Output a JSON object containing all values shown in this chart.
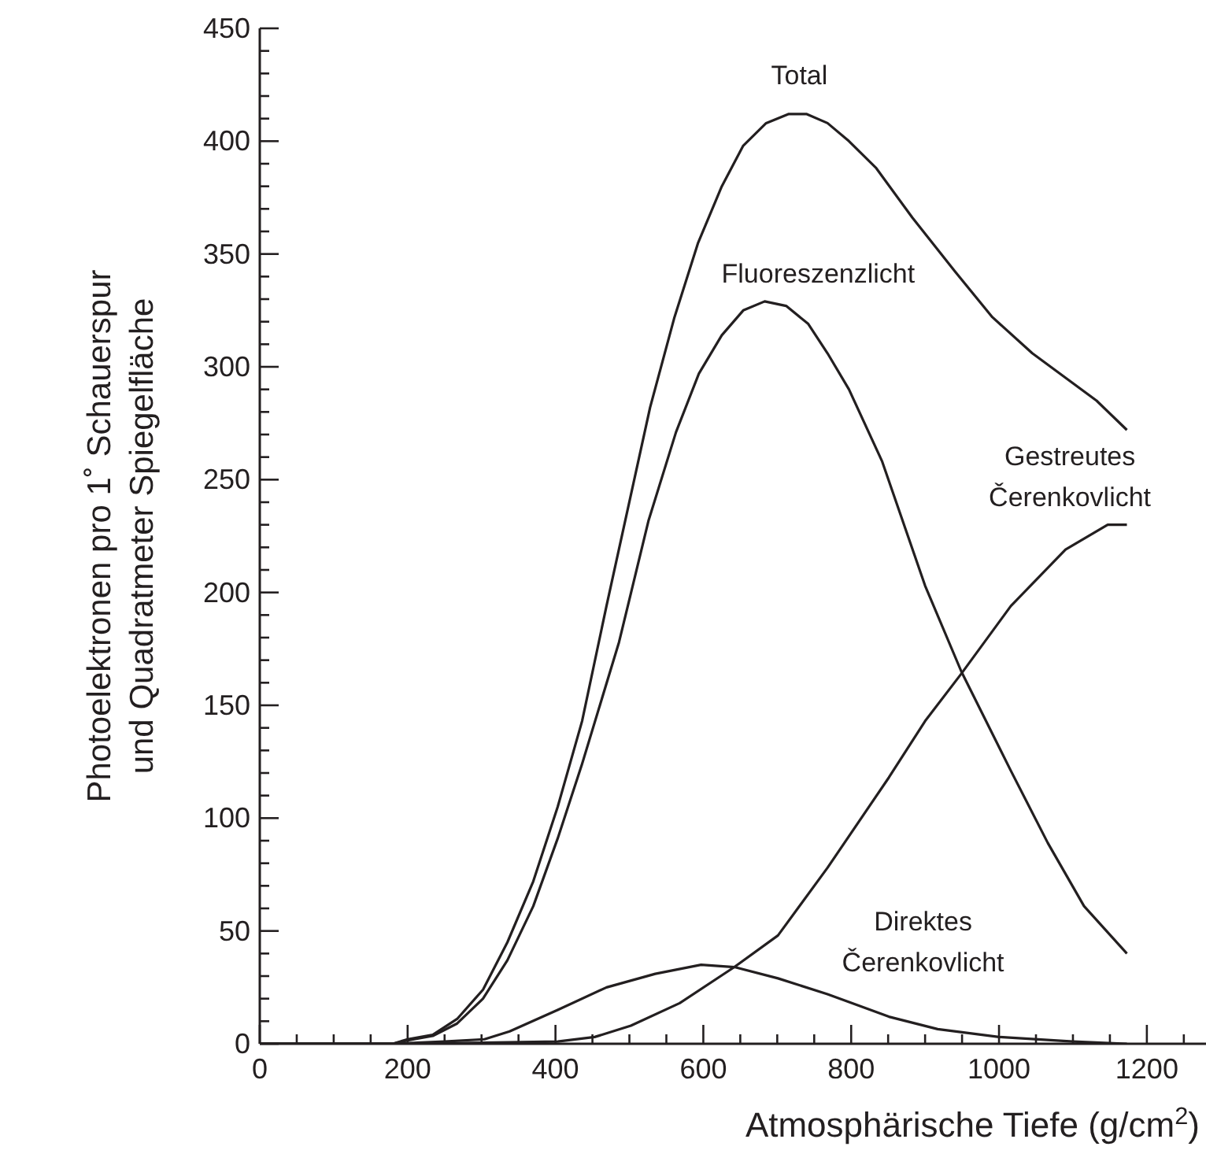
{
  "chart_data": {
    "type": "line",
    "xlabel": "Atmosphärische Tiefe (g/cm$^{2}$)",
    "ylabel": "Photoelektronen pro 1˚ Schauerspur\nund Quadratmeter Spiegelfläche",
    "marker": "none",
    "line_style": "solid",
    "xlim": [
      0,
      1280
    ],
    "ylim": [
      0,
      450
    ],
    "xticks": [
      0,
      {
        "value": 50,
        "label": null
      },
      {
        "value": 100,
        "label": null
      },
      {
        "value": 150,
        "label": null
      },
      200,
      {
        "value": 250,
        "label": null
      },
      {
        "value": 300,
        "label": null
      },
      {
        "value": 350,
        "label": null
      },
      400,
      {
        "value": 450,
        "label": null
      },
      {
        "value": 500,
        "label": null
      },
      {
        "value": 550,
        "label": null
      },
      600,
      {
        "value": 650,
        "label": null
      },
      {
        "value": 700,
        "label": null
      },
      {
        "value": 750,
        "label": null
      },
      800,
      {
        "value": 850,
        "label": null
      },
      {
        "value": 900,
        "label": null
      },
      {
        "value": 950,
        "label": null
      },
      1000,
      {
        "value": 1050,
        "label": null
      },
      {
        "value": 1100,
        "label": null
      },
      {
        "value": 1150,
        "label": null
      },
      1200,
      {
        "value": 1250,
        "label": null
      }
    ],
    "yticks": [
      0,
      {
        "value": 10,
        "label": null
      },
      {
        "value": 20,
        "label": null
      },
      {
        "value": 30,
        "label": null
      },
      {
        "value": 40,
        "label": null
      },
      50,
      {
        "value": 60,
        "label": null
      },
      {
        "value": 70,
        "label": null
      },
      {
        "value": 80,
        "label": null
      },
      {
        "value": 90,
        "label": null
      },
      100,
      {
        "value": 110,
        "label": null
      },
      {
        "value": 120,
        "label": null
      },
      {
        "value": 130,
        "label": null
      },
      {
        "value": 140,
        "label": null
      },
      150,
      {
        "value": 160,
        "label": null
      },
      {
        "value": 170,
        "label": null
      },
      {
        "value": 180,
        "label": null
      },
      {
        "value": 190,
        "label": null
      },
      200,
      {
        "value": 210,
        "label": null
      },
      {
        "value": 220,
        "label": null
      },
      {
        "value": 230,
        "label": null
      },
      {
        "value": 240,
        "label": null
      },
      250,
      {
        "value": 260,
        "label": null
      },
      {
        "value": 270,
        "label": null
      },
      {
        "value": 280,
        "label": null
      },
      {
        "value": 290,
        "label": null
      },
      300,
      {
        "value": 310,
        "label": null
      },
      {
        "value": 320,
        "label": null
      },
      {
        "value": 330,
        "label": null
      },
      {
        "value": 340,
        "label": null
      },
      350,
      {
        "value": 360,
        "label": null
      },
      {
        "value": 370,
        "label": null
      },
      {
        "value": 380,
        "label": null
      },
      {
        "value": 390,
        "label": null
      },
      400,
      {
        "value": 410,
        "label": null
      },
      {
        "value": 420,
        "label": null
      },
      {
        "value": 430,
        "label": null
      },
      {
        "value": 440,
        "label": null
      },
      450
    ],
    "series": [
      {
        "name": "Total",
        "color": "#231f20",
        "x": [
          0,
          180,
          200,
          234,
          267,
          302,
          335,
          370,
          403,
          436,
          469,
          528,
          561,
          593,
          625,
          654,
          685,
          715,
          740,
          768,
          797,
          834,
          883,
          941,
          991,
          1045,
          1132,
          1173
        ],
        "values": [
          0,
          0,
          2,
          4,
          11,
          24,
          45,
          72,
          105,
          143,
          194,
          282,
          322,
          355,
          380,
          398,
          408,
          412,
          412,
          408,
          400,
          388,
          366,
          342,
          322,
          306,
          285,
          272
        ]
      },
      {
        "name": "Fluoreszenzlicht",
        "color": "#231f20",
        "x": [
          0,
          180,
          200,
          234,
          267,
          302,
          335,
          370,
          403,
          436,
          486,
          526,
          563,
          594,
          625,
          654,
          683,
          712,
          742,
          768,
          797,
          842,
          900,
          949,
          1016,
          1066,
          1115,
          1173
        ],
        "values": [
          0,
          0,
          1.5,
          3.5,
          9,
          20,
          37,
          61,
          91,
          124,
          178,
          232,
          271,
          297,
          314,
          325,
          329,
          327,
          319,
          306,
          290,
          258,
          203,
          165,
          121,
          89,
          61,
          40
        ]
      },
      {
        "name": "Gestreutes Čerenkovlicht",
        "color": "#231f20",
        "x": [
          0,
          200,
          304,
          403,
          453,
          502,
          568,
          642,
          701,
          768,
          851,
          900,
          949,
          1016,
          1090,
          1147,
          1173
        ],
        "values": [
          0,
          0,
          0.5,
          1,
          3,
          8,
          18,
          34,
          48,
          78,
          118,
          143,
          164,
          194,
          219,
          230,
          230
        ]
      },
      {
        "name": "Direktes Čerenkovlicht",
        "color": "#231f20",
        "x": [
          0,
          180,
          250,
          304,
          338,
          403,
          469,
          535,
          597,
          642,
          701,
          768,
          851,
          917,
          1000,
          1100,
          1173
        ],
        "values": [
          0,
          0,
          1,
          2,
          5.5,
          15,
          25,
          31,
          35,
          34,
          29,
          22,
          12,
          6.5,
          3,
          1,
          0
        ]
      }
    ]
  }
}
